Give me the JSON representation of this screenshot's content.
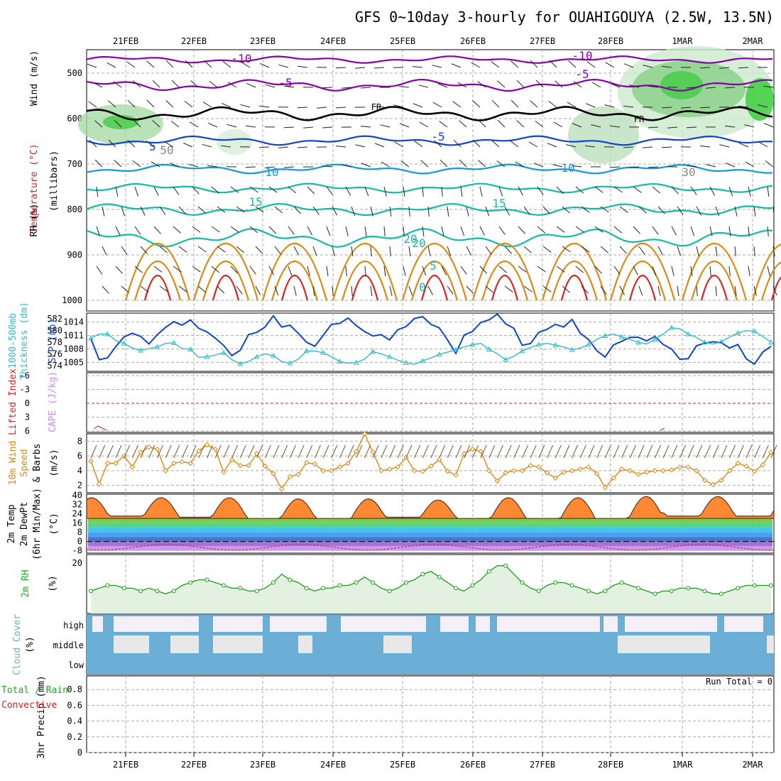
{
  "title": "GFS 0~10day 3-hourly for OUAHIGOUYA (2.5W, 13.5N)",
  "dates": [
    "21FEB",
    "22FEB",
    "23FEB",
    "24FEB",
    "25FEB",
    "26FEB",
    "27FEB",
    "28FEB",
    "1MAR",
    "2MAR"
  ],
  "colors": {
    "purple": "#8800aa",
    "blue": "#1144cc",
    "lightblue": "#1199dd",
    "teal": "#11bbaa",
    "orange": "#dd8811",
    "red": "#dd2222",
    "rhgreen": "#44cc44",
    "cape": "#cc88ee",
    "cloud": "#6baed6",
    "precip_rain": "#22aa22"
  },
  "panels": {
    "upper_air": {
      "y_labels": [
        "Wind (m/s)",
        "Temperature (°C)",
        "(millibars)",
        "RH (%)"
      ],
      "pressure_ticks": [
        "500",
        "600",
        "700",
        "800",
        "900",
        "1000"
      ],
      "contour_labels": [
        "-10",
        "-5",
        "FR",
        "-5",
        "5",
        "10",
        "15",
        "20",
        "0",
        "-10",
        "-5",
        "FR",
        "5",
        "10",
        "15",
        "20",
        "30",
        "50"
      ]
    },
    "thickness_slp": {
      "y_labels": [
        "1000-500mb",
        "Thickness (dm)",
        "SLP (mb)"
      ],
      "thickness_ticks": [
        "574",
        "576",
        "578",
        "580",
        "582"
      ],
      "slp_ticks": [
        "1005",
        "1008",
        "1011",
        "1014"
      ]
    },
    "stability": {
      "y_labels": [
        "Lifted Index",
        "CAPE (J/kg)"
      ],
      "li_ticks": [
        "-6",
        "-3",
        "0",
        "3",
        "6"
      ]
    },
    "wind10m": {
      "y_labels": [
        "10m Wind",
        "Speed",
        "& Barbs",
        "(m/s)"
      ],
      "ticks": [
        "2",
        "4",
        "6",
        "8"
      ]
    },
    "temp2m": {
      "y_labels": [
        "2m Temp",
        "2m DewPt",
        "(6hr Min/Max)",
        "(°C)"
      ],
      "ticks": [
        "40",
        "32",
        "24",
        "16",
        "8",
        "0",
        "-8"
      ]
    },
    "rh2m": {
      "y_labels": [
        "2m RH",
        "(%)"
      ],
      "ticks": [
        "20"
      ]
    },
    "cloud": {
      "y_labels": [
        "Cloud Cover",
        "(%)"
      ],
      "layers": [
        "high",
        "middle",
        "low"
      ]
    },
    "precip": {
      "y_labels": [
        "Total / Rain",
        "Convective",
        "3hr Precip (mm)"
      ],
      "ticks": [
        "0",
        "0.2",
        "0.4",
        "0.6",
        "0.8"
      ],
      "run_total": "Run Total = 0"
    }
  },
  "chart_data": [
    {
      "type": "line",
      "name": "slp",
      "ylabel": "SLP (mb)",
      "ylim": [
        1003,
        1016
      ],
      "x_start": "21FEB 00Z",
      "x_step_hours": 3,
      "values": [
        1010.3,
        1005.6,
        1006.0,
        1008.5,
        1010.7,
        1011.5,
        1010.8,
        1009.1,
        1011.2,
        1012.8,
        1014.1,
        1013.3,
        1014.5,
        1012.6,
        1011.8,
        1010.4,
        1008.8,
        1006.5,
        1007.7,
        1011.2,
        1011.7,
        1012.9,
        1015.4,
        1012.9,
        1013.3,
        1011.5,
        1009.5,
        1008.6,
        1011.0,
        1013.5,
        1013.7,
        1014.9,
        1013.2,
        1011.9,
        1010.9,
        1011.2,
        1010.0,
        1012.3,
        1013.0,
        1014.8,
        1015.2,
        1013.5,
        1012.7,
        1010.0,
        1007.0,
        1011.1,
        1011.9,
        1013.9,
        1014.5,
        1015.8,
        1013.6,
        1012.6,
        1008.8,
        1009.2,
        1011.7,
        1012.4,
        1013.5,
        1012.9,
        1014.6,
        1011.5,
        1010.1,
        1007.6,
        1006.2,
        1008.9,
        1009.7,
        1010.6,
        1010.6,
        1009.8,
        1010.8,
        1009.0,
        1008.0,
        1005.7,
        1005.8,
        1008.7,
        1009.3,
        1009.6,
        1009.4,
        1008.2,
        1009.0,
        1005.8,
        1004.6,
        1007.3,
        1008.6
      ]
    },
    {
      "type": "line",
      "name": "thickness",
      "ylabel": "1000-500mb Thickness (dm)",
      "ylim": [
        573,
        583
      ],
      "values": [
        578.7,
        579.4,
        579.4,
        578.3,
        577.8,
        577.0,
        576.6,
        576.9,
        577.2,
        577.8,
        577.9,
        576.9,
        576.8,
        575.4,
        575.5,
        575.8,
        576.2,
        575.0,
        574.3,
        574.7,
        575.5,
        576.0,
        575.7,
        574.7,
        574.4,
        575.1,
        576.5,
        576.5,
        576.2,
        575.5,
        574.7,
        574.4,
        574.5,
        575.1,
        576.4,
        576.0,
        575.5,
        574.9,
        574.5,
        574.2,
        574.8,
        575.3,
        575.9,
        576.3,
        576.7,
        577.2,
        577.6,
        577.8,
        576.8,
        576.0,
        575.0,
        575.6,
        576.5,
        577.1,
        577.6,
        577.8,
        577.5,
        577.2,
        576.7,
        577.0,
        577.6,
        578.5,
        579.1,
        579.4,
        578.9,
        578.5,
        578.0,
        577.7,
        578.5,
        579.4,
        580.5,
        580.3,
        579.4,
        578.8,
        578.0,
        577.7,
        578.1,
        578.9,
        579.6,
        580.0,
        579.9,
        579.0,
        578.0
      ]
    },
    {
      "type": "line",
      "name": "wind10m_speed",
      "ylabel": "10m Wind Speed (m/s)",
      "ylim": [
        1,
        9
      ],
      "values": [
        5.3,
        2.2,
        5.0,
        5.0,
        6.0,
        4.5,
        6.5,
        7.2,
        6.9,
        4.0,
        5.0,
        5.2,
        5.0,
        6.7,
        7.5,
        6.9,
        3.8,
        5.5,
        4.7,
        4.7,
        6.3,
        4.6,
        3.6,
        1.5,
        3.2,
        3.5,
        5.1,
        4.9,
        4.0,
        4.0,
        4.5,
        5.0,
        6.6,
        9.0,
        6.5,
        4.0,
        4.2,
        4.5,
        5.8,
        4.0,
        3.9,
        4.6,
        5.5,
        3.9,
        3.4,
        6.3,
        6.9,
        6.6,
        4.0,
        2.6,
        3.7,
        4.0,
        4.0,
        4.7,
        4.5,
        3.7,
        3.0,
        3.8,
        4.0,
        4.2,
        4.5,
        3.6,
        1.7,
        3.0,
        4.2,
        4.0,
        3.5,
        3.8,
        4.0,
        4.0,
        4.1,
        4.5,
        4.5,
        4.0,
        2.7,
        2.1,
        2.7,
        4.0,
        5.0,
        4.6,
        3.9,
        4.8,
        6.5
      ]
    },
    {
      "type": "area",
      "name": "temp2m",
      "ylabel": "2m Temp (°C)",
      "ylim": [
        -10,
        41
      ],
      "amplitude_max": [
        38,
        38,
        37,
        37,
        36,
        38,
        38,
        39,
        39,
        39
      ],
      "amplitude_min": [
        22,
        21,
        20,
        20,
        21,
        20,
        20,
        20,
        22,
        22
      ]
    },
    {
      "type": "line",
      "name": "rh2m",
      "ylabel": "2m RH (%)",
      "ylim": [
        2,
        23
      ],
      "values": [
        10,
        11,
        12,
        12,
        11,
        11,
        10,
        11,
        10,
        9,
        10,
        12,
        13,
        14,
        14,
        13,
        12,
        11,
        11,
        10,
        10,
        11,
        13,
        16,
        14,
        13,
        11,
        10,
        11,
        11,
        12,
        12,
        13,
        15,
        13,
        11,
        10,
        11,
        13,
        14,
        16,
        17,
        15,
        13,
        11,
        10,
        12,
        14,
        17,
        19,
        19,
        16,
        13,
        11,
        10,
        12,
        13,
        13,
        12,
        11,
        10,
        9,
        10,
        12,
        13,
        12,
        11,
        10,
        9,
        10,
        10,
        11,
        11,
        11,
        10,
        9,
        9,
        10,
        11,
        12,
        12,
        12,
        12
      ]
    },
    {
      "type": "bar",
      "name": "precip_3hr",
      "ylabel": "3hr Precip (mm)",
      "ylim": [
        0,
        1
      ],
      "values": []
    }
  ]
}
